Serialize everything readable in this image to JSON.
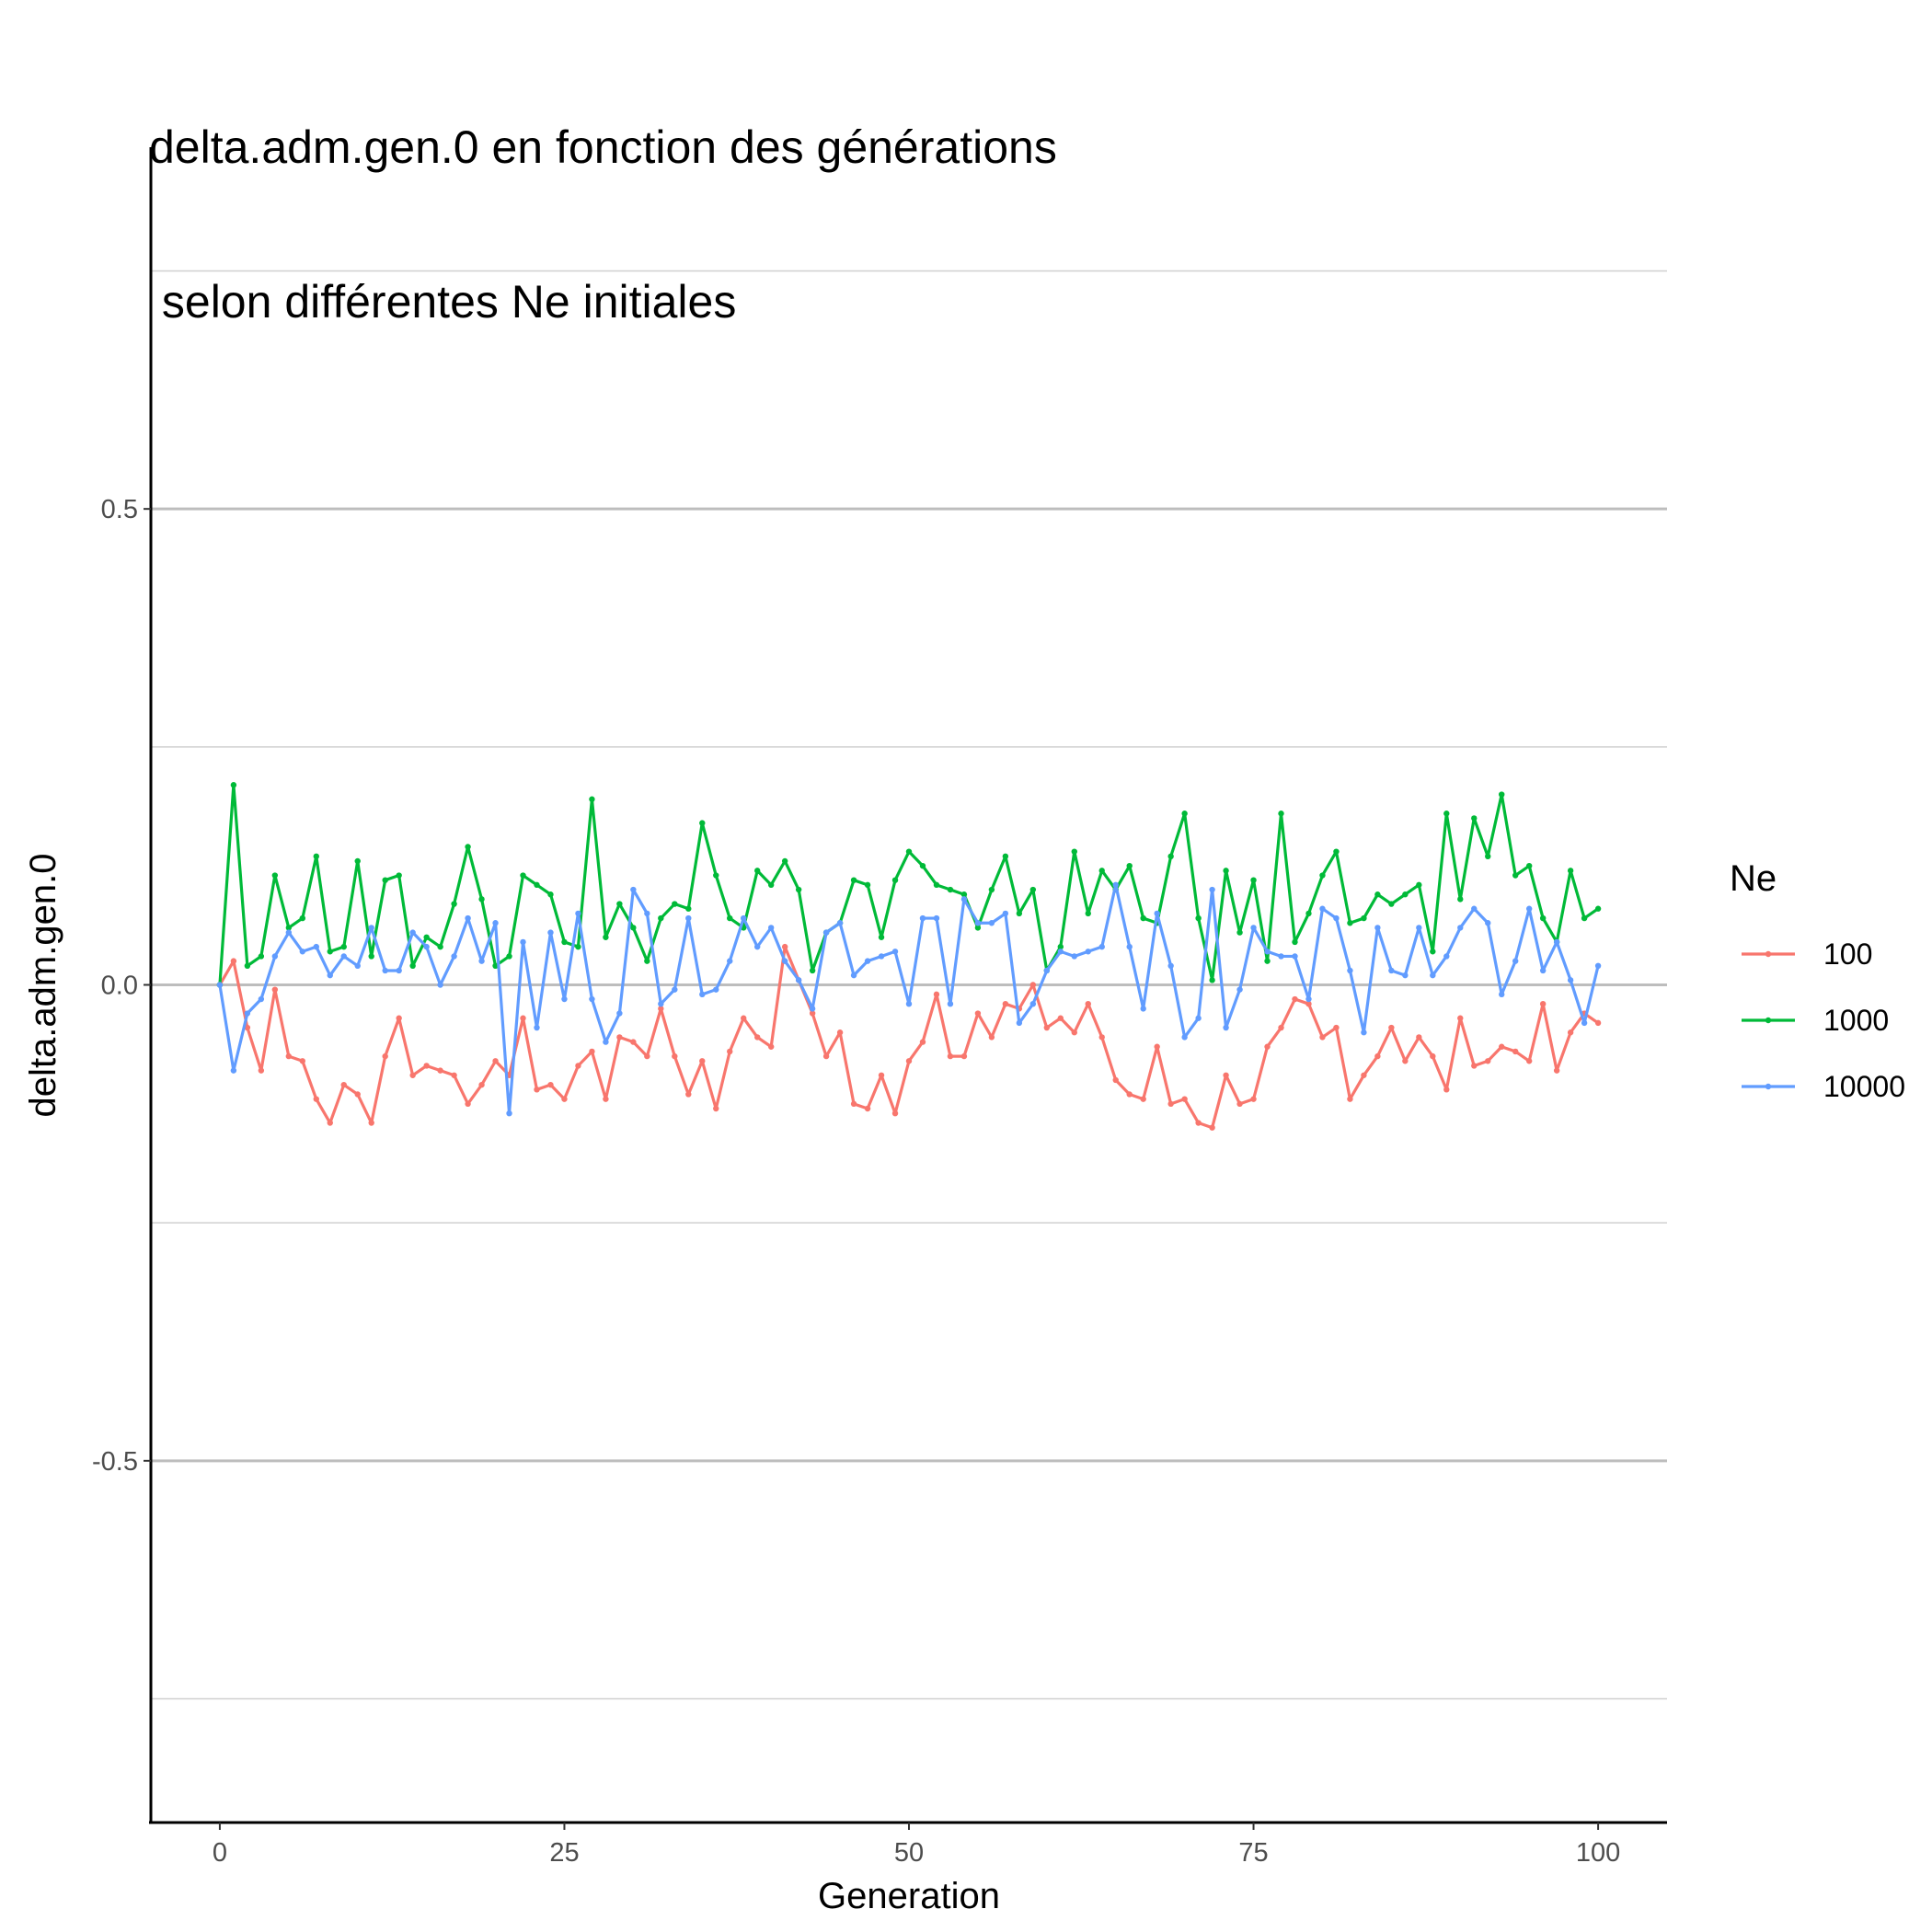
{
  "chart_data": {
    "type": "line",
    "title_line1": "delta.adm.gen.0 en fonction des générations",
    "title_line2": " selon différentes Ne initiales",
    "xlabel": "Generation",
    "ylabel": "delta.adm.gen.0",
    "xlim": [
      -5,
      105
    ],
    "ylim": [
      -0.88,
      0.88
    ],
    "x_ticks": [
      0,
      25,
      50,
      75,
      100
    ],
    "y_ticks": [
      -0.5,
      0.0,
      0.5
    ],
    "y_tick_labels": [
      "-0.5",
      "0.0",
      "0.5"
    ],
    "legend_title": "Ne",
    "legend_position": "right",
    "grid": "horizontal",
    "series": [
      {
        "name": "100",
        "color": "#F8766D",
        "values": [
          0.0,
          0.025,
          -0.045,
          -0.09,
          -0.005,
          -0.075,
          -0.08,
          -0.12,
          -0.145,
          -0.105,
          -0.115,
          -0.145,
          -0.075,
          -0.035,
          -0.095,
          -0.085,
          -0.09,
          -0.095,
          -0.125,
          -0.105,
          -0.08,
          -0.095,
          -0.035,
          -0.11,
          -0.105,
          -0.12,
          -0.085,
          -0.07,
          -0.12,
          -0.055,
          -0.06,
          -0.075,
          -0.025,
          -0.075,
          -0.115,
          -0.08,
          -0.13,
          -0.07,
          -0.035,
          -0.055,
          -0.065,
          0.04,
          0.005,
          -0.03,
          -0.075,
          -0.05,
          -0.125,
          -0.13,
          -0.095,
          -0.135,
          -0.08,
          -0.06,
          -0.01,
          -0.075,
          -0.075,
          -0.03,
          -0.055,
          -0.02,
          -0.025,
          0.0,
          -0.045,
          -0.035,
          -0.05,
          -0.02,
          -0.055,
          -0.1,
          -0.115,
          -0.12,
          -0.065,
          -0.125,
          -0.12,
          -0.145,
          -0.15,
          -0.095,
          -0.125,
          -0.12,
          -0.065,
          -0.045,
          -0.015,
          -0.02,
          -0.055,
          -0.045,
          -0.12,
          -0.095,
          -0.075,
          -0.045,
          -0.08,
          -0.055,
          -0.075,
          -0.11,
          -0.035,
          -0.085,
          -0.08,
          -0.065,
          -0.07,
          -0.08,
          -0.02,
          -0.09,
          -0.05,
          -0.03,
          -0.04
        ]
      },
      {
        "name": "1000",
        "color": "#00BA38",
        "values": [
          0.0,
          0.21,
          0.02,
          0.03,
          0.115,
          0.06,
          0.07,
          0.135,
          0.035,
          0.04,
          0.13,
          0.03,
          0.11,
          0.115,
          0.02,
          0.05,
          0.04,
          0.085,
          0.145,
          0.09,
          0.02,
          0.03,
          0.115,
          0.105,
          0.095,
          0.045,
          0.04,
          0.195,
          0.05,
          0.085,
          0.06,
          0.025,
          0.07,
          0.085,
          0.08,
          0.17,
          0.115,
          0.07,
          0.06,
          0.12,
          0.105,
          0.13,
          0.1,
          0.015,
          0.055,
          0.065,
          0.11,
          0.105,
          0.05,
          0.11,
          0.14,
          0.125,
          0.105,
          0.1,
          0.095,
          0.06,
          0.1,
          0.135,
          0.075,
          0.1,
          0.015,
          0.04,
          0.14,
          0.075,
          0.12,
          0.1,
          0.125,
          0.07,
          0.065,
          0.135,
          0.18,
          0.07,
          0.005,
          0.12,
          0.055,
          0.11,
          0.025,
          0.18,
          0.045,
          0.075,
          0.115,
          0.14,
          0.065,
          0.07,
          0.095,
          0.085,
          0.095,
          0.105,
          0.035,
          0.18,
          0.09,
          0.175,
          0.135,
          0.2,
          0.115,
          0.125,
          0.07,
          0.045,
          0.12,
          0.07,
          0.08
        ]
      },
      {
        "name": "10000",
        "color": "#619CFF",
        "values": [
          0.0,
          -0.09,
          -0.03,
          -0.015,
          0.03,
          0.055,
          0.035,
          0.04,
          0.01,
          0.03,
          0.02,
          0.06,
          0.015,
          0.015,
          0.055,
          0.04,
          0.0,
          0.03,
          0.07,
          0.025,
          0.065,
          -0.135,
          0.045,
          -0.045,
          0.055,
          -0.015,
          0.075,
          -0.015,
          -0.06,
          -0.03,
          0.1,
          0.075,
          -0.02,
          -0.005,
          0.07,
          -0.01,
          -0.005,
          0.025,
          0.07,
          0.04,
          0.06,
          0.025,
          0.005,
          -0.025,
          0.055,
          0.065,
          0.01,
          0.025,
          0.03,
          0.035,
          -0.02,
          0.07,
          0.07,
          -0.02,
          0.09,
          0.065,
          0.065,
          0.075,
          -0.04,
          -0.02,
          0.015,
          0.035,
          0.03,
          0.035,
          0.04,
          0.105,
          0.04,
          -0.025,
          0.075,
          0.02,
          -0.055,
          -0.035,
          0.1,
          -0.045,
          -0.005,
          0.06,
          0.035,
          0.03,
          0.03,
          -0.015,
          0.08,
          0.07,
          0.015,
          -0.05,
          0.06,
          0.015,
          0.01,
          0.06,
          0.01,
          0.03,
          0.06,
          0.08,
          0.065,
          -0.01,
          0.025,
          0.08,
          0.015,
          0.045,
          0.005,
          -0.04,
          0.02
        ]
      }
    ]
  }
}
